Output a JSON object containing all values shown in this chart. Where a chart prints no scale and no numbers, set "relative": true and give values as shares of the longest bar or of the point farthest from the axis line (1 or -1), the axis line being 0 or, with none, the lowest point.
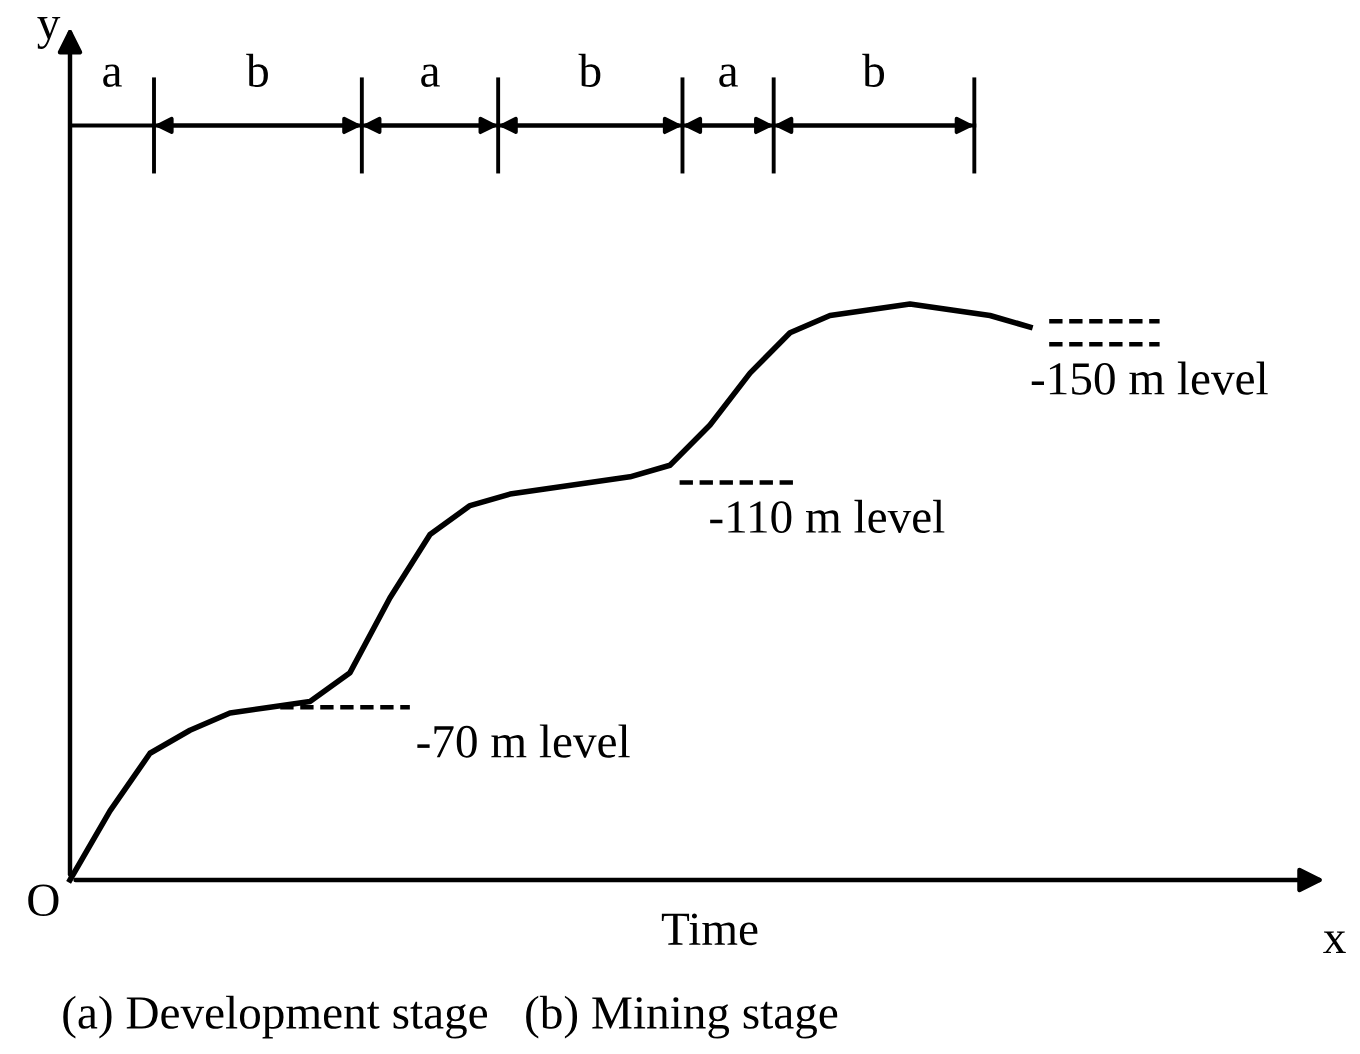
{
  "chart_data": {
    "type": "line",
    "relative": true,
    "xlabel": "Time",
    "categories": [
      null,
      null,
      null,
      null,
      null,
      null,
      null,
      null,
      null,
      null,
      null,
      null,
      null,
      null,
      null,
      null,
      null,
      null,
      null,
      null,
      null,
      null,
      null,
      null,
      null
    ],
    "series": [
      {
        "color": "#000000",
        "line_style": "solid",
        "values": [
          0,
          0.12,
          0.22,
          0.26,
          0.29,
          0.3,
          0.31,
          0.36,
          0.49,
          0.6,
          0.65,
          0.67,
          0.68,
          0.69,
          0.7,
          0.72,
          0.79,
          0.88,
          0.95,
          0.98,
          0.99,
          1.0,
          0.99,
          0.98,
          0.96
        ]
      }
    ],
    "annotations": [
      "a",
      "b",
      "a",
      "b",
      "a",
      "b",
      "-70 m level",
      "-110 m level",
      "-150 m level",
      "O",
      "x",
      "y",
      "(a) Development stage   (b) Mining stage"
    ]
  }
}
